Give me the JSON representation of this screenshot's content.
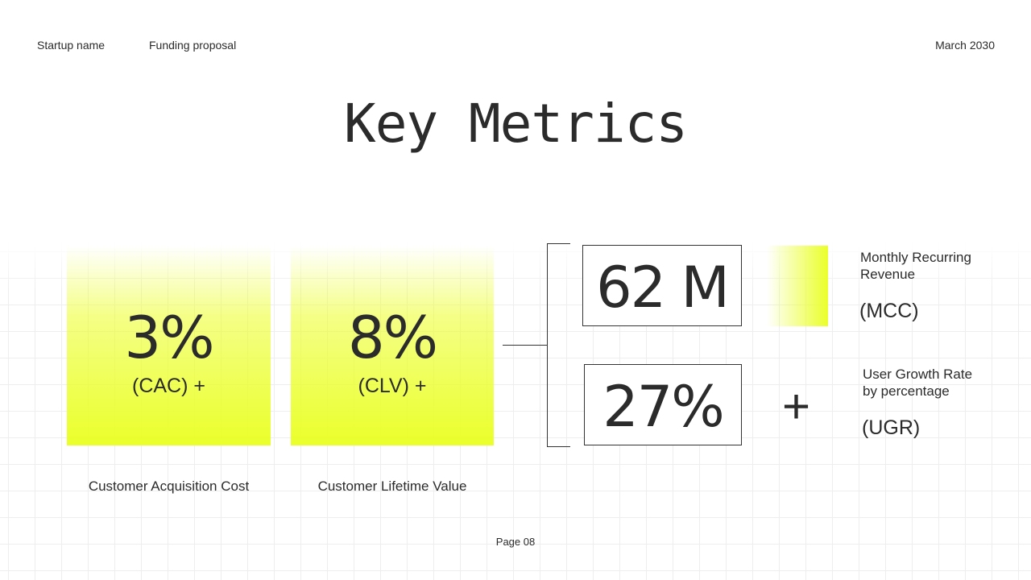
{
  "header": {
    "startup_name": "Startup name",
    "doc_type": "Funding proposal",
    "date": "March 2030"
  },
  "title": "Key Metrics",
  "metrics_left": [
    {
      "value": "3%",
      "abbr": "(CAC) +",
      "caption": "Customer Acquisition Cost"
    },
    {
      "value": "8%",
      "abbr": "(CLV) +",
      "caption": "Customer Lifetime Value"
    }
  ],
  "metrics_right": [
    {
      "value": "62 M",
      "label_line1": "Monthly Recurring",
      "label_line2": "Revenue",
      "abbr": "(MCC)"
    },
    {
      "value": "27%",
      "label_line1": "User Growth Rate",
      "label_line2": "by percentage",
      "abbr": "(UGR)",
      "symbol": "+"
    }
  ],
  "footer": {
    "page": "Page 08"
  },
  "colors": {
    "accent": "#eaff2a",
    "text": "#2b2b2b"
  }
}
